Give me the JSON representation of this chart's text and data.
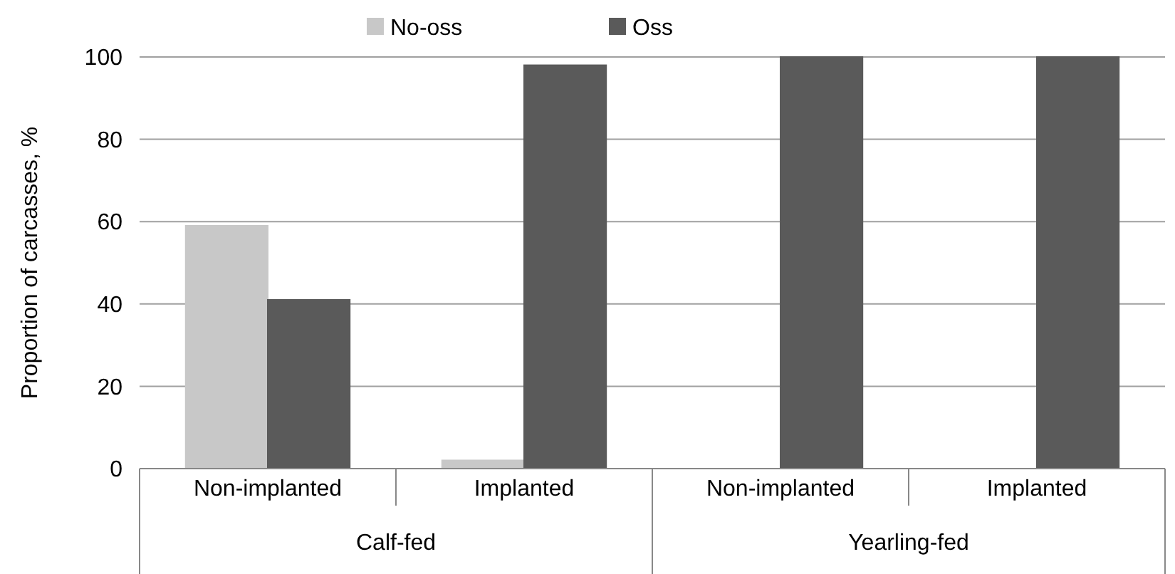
{
  "chart_data": {
    "type": "bar",
    "ylabel": "Proportion of carcasses, %",
    "categories": [
      "Non-implanted",
      "Implanted",
      "Non-implanted",
      "Implanted"
    ],
    "annotations": [
      "Calf-fed",
      "Yearling-fed"
    ],
    "series": [
      {
        "name": "No-oss",
        "color": "#c8c8c8",
        "values": [
          59,
          2,
          0,
          0
        ]
      },
      {
        "name": "Oss",
        "color": "#5a5a5a",
        "values": [
          41,
          98,
          100,
          100
        ]
      }
    ],
    "ylim": [
      0,
      100
    ],
    "yticks": [
      0,
      20,
      40,
      60,
      80,
      100
    ],
    "grid": "y",
    "legend": "top"
  }
}
